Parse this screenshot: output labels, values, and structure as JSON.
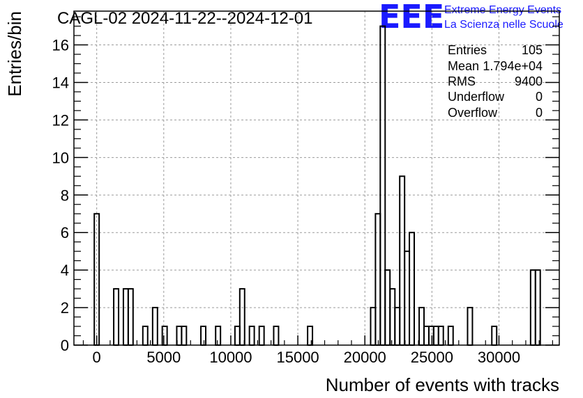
{
  "chart_data": {
    "type": "histogram",
    "title": "CAGL-02 2024-11-22--2024-12-01",
    "xlabel": "Number of events with tracks",
    "ylabel": "Entries/bin",
    "xlim": [
      -1700,
      34500
    ],
    "ylim": [
      0,
      17.8
    ],
    "bin_width": 362,
    "x_ticks": [
      0,
      5000,
      10000,
      15000,
      20000,
      25000,
      30000
    ],
    "x_tick_labels": [
      "0",
      "5000",
      "10000",
      "15000",
      "20000",
      "25000",
      "30000"
    ],
    "y_ticks": [
      0,
      2,
      4,
      6,
      8,
      10,
      12,
      14,
      16
    ],
    "y_tick_labels": [
      "0",
      "2",
      "4",
      "6",
      "8",
      "10",
      "12",
      "14",
      "16"
    ],
    "grid": true,
    "bins": [
      {
        "x": 0,
        "count": 7
      },
      {
        "x": 1450,
        "count": 3
      },
      {
        "x": 2170,
        "count": 3
      },
      {
        "x": 2530,
        "count": 3
      },
      {
        "x": 3620,
        "count": 1
      },
      {
        "x": 4350,
        "count": 2
      },
      {
        "x": 5070,
        "count": 1
      },
      {
        "x": 6150,
        "count": 1
      },
      {
        "x": 6510,
        "count": 1
      },
      {
        "x": 7950,
        "count": 1
      },
      {
        "x": 9050,
        "count": 1
      },
      {
        "x": 10490,
        "count": 1
      },
      {
        "x": 10850,
        "count": 3
      },
      {
        "x": 11570,
        "count": 1
      },
      {
        "x": 12300,
        "count": 1
      },
      {
        "x": 13380,
        "count": 1
      },
      {
        "x": 15910,
        "count": 1
      },
      {
        "x": 20610,
        "count": 2
      },
      {
        "x": 20970,
        "count": 7
      },
      {
        "x": 21330,
        "count": 17
      },
      {
        "x": 21690,
        "count": 4
      },
      {
        "x": 22060,
        "count": 3
      },
      {
        "x": 22420,
        "count": 2
      },
      {
        "x": 22780,
        "count": 9
      },
      {
        "x": 23140,
        "count": 5
      },
      {
        "x": 23500,
        "count": 6
      },
      {
        "x": 23860,
        "count": 0
      },
      {
        "x": 24230,
        "count": 2
      },
      {
        "x": 24590,
        "count": 1
      },
      {
        "x": 24950,
        "count": 1
      },
      {
        "x": 25310,
        "count": 1
      },
      {
        "x": 25670,
        "count": 1
      },
      {
        "x": 26400,
        "count": 1
      },
      {
        "x": 27840,
        "count": 2
      },
      {
        "x": 29650,
        "count": 1
      },
      {
        "x": 32540,
        "count": 4
      },
      {
        "x": 32900,
        "count": 4
      }
    ],
    "stats": [
      {
        "label": "Entries",
        "value": "105"
      },
      {
        "label": "Mean",
        "value": "1.794e+04"
      },
      {
        "label": "RMS",
        "value": "9400"
      },
      {
        "label": "Underflow",
        "value": "0"
      },
      {
        "label": "Overflow",
        "value": "0"
      }
    ],
    "logo": {
      "mark": "EEE",
      "line1": "Extreme Energy Events",
      "line2": "La Scienza nelle Scuole"
    }
  }
}
